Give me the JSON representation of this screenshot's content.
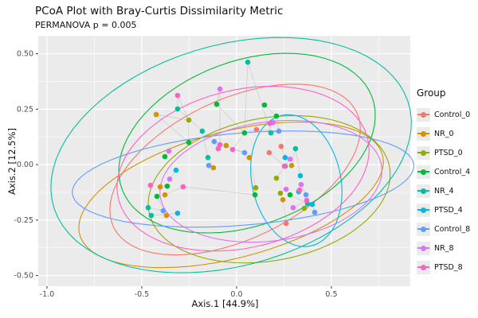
{
  "title": "PCoA Plot with Bray-Curtis Dissimilarity Metric",
  "subtitle": "PERMANOVA p = 0.005",
  "chart_data": {
    "type": "scatter",
    "xlabel": "Axis.1  [44.9%]",
    "ylabel": "Axis.2  [12.5%]",
    "legend_title": "Group",
    "xlim": [
      -1.046,
      0.916
    ],
    "ylim": [
      -0.548,
      0.581
    ],
    "x_major_ticks": [
      -1.0,
      -0.5,
      0.0,
      0.5
    ],
    "x_tick_labels": [
      "-1.0",
      "-0.5",
      "0.0",
      "0.5"
    ],
    "x_minor_ticks": [
      -0.75,
      -0.25,
      0.25,
      0.75
    ],
    "y_major_ticks": [
      0.5,
      0.25,
      0.0,
      -0.25,
      -0.5
    ],
    "y_tick_labels": [
      "0.50",
      "0.25",
      "0.00",
      "-0.25",
      "-0.50"
    ],
    "y_minor_ticks": [
      0.375,
      0.125,
      -0.125,
      -0.375
    ],
    "panel_bg": "#EBEBEB",
    "grid_color": "#FFFFFF",
    "web_color": "#999999",
    "series": [
      {
        "name": "Control_0",
        "color": "#F8766D",
        "points": [
          [
            0.105,
            0.158
          ],
          [
            0.235,
            0.082
          ],
          [
            0.261,
            -0.265
          ],
          [
            0.172,
            0.054
          ]
        ],
        "ellipse": {
          "cx": -0.008,
          "cy": -0.022,
          "a": 0.693,
          "b": 0.323,
          "rot": 20
        }
      },
      {
        "name": "NR_0",
        "color": "#D39200",
        "points": [
          [
            -0.424,
            0.226
          ],
          [
            -0.055,
            0.086
          ],
          [
            0.067,
            0.032
          ],
          [
            -0.122,
            -0.014
          ],
          [
            -0.403,
            -0.1
          ],
          [
            -0.378,
            -0.136
          ],
          [
            -0.37,
            -0.229
          ],
          [
            0.29,
            -0.004
          ],
          [
            0.244,
            -0.158
          ]
        ],
        "ellipse": {
          "cx": -0.029,
          "cy": -0.136,
          "a": 0.819,
          "b": 0.287,
          "rot": 12
        }
      },
      {
        "name": "PTSD_0",
        "color": "#93AA00",
        "points": [
          [
            -0.252,
            0.201
          ],
          [
            0.101,
            -0.104
          ],
          [
            0.21,
            -0.061
          ],
          [
            0.231,
            -0.129
          ],
          [
            0.357,
            -0.197
          ]
        ],
        "ellipse": {
          "cx": 0.172,
          "cy": -0.111,
          "a": 0.643,
          "b": 0.323,
          "rot": 8
        }
      },
      {
        "name": "Control_4",
        "color": "#00BA38",
        "points": [
          [
            -0.105,
            0.272
          ],
          [
            0.147,
            0.269
          ],
          [
            0.21,
            0.219
          ],
          [
            0.042,
            0.143
          ],
          [
            -0.252,
            0.1
          ],
          [
            -0.378,
            0.036
          ],
          [
            -0.366,
            -0.097
          ],
          [
            -0.42,
            -0.143
          ],
          [
            0.097,
            -0.136
          ],
          [
            0.282,
            -0.136
          ]
        ],
        "ellipse": {
          "cx": 0.055,
          "cy": 0.097,
          "a": 0.693,
          "b": 0.376,
          "rot": 15
        }
      },
      {
        "name": "NR_4",
        "color": "#00C19F",
        "points": [
          [
            0.059,
            0.462
          ],
          [
            -0.311,
            0.251
          ],
          [
            -0.181,
            0.151
          ],
          [
            0.181,
            0.143
          ],
          [
            0.311,
            0.072
          ],
          [
            0.256,
            -0.007
          ],
          [
            -0.151,
            0.032
          ],
          [
            -0.466,
            -0.194
          ],
          [
            -0.45,
            -0.229
          ],
          [
            0.374,
            -0.176
          ]
        ],
        "ellipse": {
          "cx": -0.029,
          "cy": 0.043,
          "a": 0.966,
          "b": 0.502,
          "rot": 12
        }
      },
      {
        "name": "PTSD_4",
        "color": "#00B9E3",
        "points": [
          [
            0.256,
            0.032
          ],
          [
            0.336,
            -0.05
          ],
          [
            0.328,
            -0.122
          ],
          [
            0.399,
            -0.179
          ],
          [
            -0.319,
            -0.025
          ],
          [
            -0.311,
            -0.219
          ]
        ],
        "ellipse": {
          "cx": 0.315,
          "cy": -0.072,
          "a": 0.231,
          "b": 0.305,
          "rot": 20
        }
      },
      {
        "name": "Control_8",
        "color": "#619CFF",
        "points": [
          [
            -0.118,
            0.104
          ],
          [
            0.223,
            0.151
          ],
          [
            0.042,
            0.054
          ],
          [
            -0.147,
            -0.004
          ],
          [
            0.366,
            -0.136
          ],
          [
            -0.387,
            -0.208
          ],
          [
            0.412,
            -0.215
          ]
        ],
        "ellipse": {
          "cx": 0.034,
          "cy": -0.065,
          "a": 0.903,
          "b": 0.208,
          "rot": 4
        }
      },
      {
        "name": "NR_8",
        "color": "#DB72FB",
        "points": [
          [
            -0.088,
            0.341
          ],
          [
            0.193,
            0.19
          ],
          [
            -0.357,
            0.061
          ],
          [
            -0.353,
            -0.065
          ],
          [
            0.282,
            0.025
          ],
          [
            0.261,
            -0.111
          ],
          [
            0.34,
            -0.09
          ],
          [
            0.298,
            -0.194
          ]
        ],
        "ellipse": {
          "cx": 0.181,
          "cy": -0.075,
          "a": 0.588,
          "b": 0.269,
          "rot": 6
        }
      },
      {
        "name": "PTSD_8",
        "color": "#FF61C3",
        "points": [
          [
            -0.311,
            0.312
          ],
          [
            0.176,
            0.186
          ],
          [
            -0.088,
            0.09
          ],
          [
            -0.097,
            0.072
          ],
          [
            -0.021,
            0.068
          ],
          [
            -0.454,
            -0.093
          ],
          [
            -0.282,
            -0.1
          ],
          [
            0.252,
            -0.007
          ],
          [
            0.332,
            -0.115
          ],
          [
            0.37,
            -0.161
          ]
        ],
        "ellipse": {
          "cx": 0.034,
          "cy": -0.018,
          "a": 0.672,
          "b": 0.358,
          "rot": 10
        }
      }
    ],
    "web_edges": [
      [
        28,
        31
      ],
      [
        28,
        21
      ],
      [
        59,
        13
      ],
      [
        59,
        29
      ],
      [
        51,
        61
      ],
      [
        51,
        18
      ],
      [
        60,
        31
      ],
      [
        4,
        22
      ],
      [
        4,
        13
      ],
      [
        29,
        30
      ],
      [
        18,
        21
      ],
      [
        19,
        20
      ],
      [
        20,
        45
      ],
      [
        0,
        45
      ],
      [
        0,
        21
      ],
      [
        1,
        38
      ],
      [
        5,
        46
      ],
      [
        5,
        44
      ],
      [
        6,
        14
      ],
      [
        7,
        34
      ],
      [
        7,
        47
      ],
      [
        8,
        24
      ],
      [
        9,
        65
      ],
      [
        10,
        25
      ],
      [
        13,
        22
      ],
      [
        14,
        26
      ],
      [
        15,
        33
      ],
      [
        16,
        56
      ],
      [
        17,
        37
      ],
      [
        23,
        53
      ],
      [
        30,
        34
      ],
      [
        32,
        39
      ],
      [
        35,
        49
      ],
      [
        36,
        43
      ],
      [
        40,
        67
      ],
      [
        41,
        50
      ],
      [
        42,
        54
      ],
      [
        44,
        62
      ],
      [
        46,
        63
      ],
      [
        48,
        57
      ],
      [
        52,
        60
      ],
      [
        55,
        66
      ],
      [
        58,
        68
      ],
      [
        3,
        66
      ],
      [
        2,
        12
      ],
      [
        11,
        32
      ],
      [
        63,
        21
      ],
      [
        45,
        31
      ],
      [
        27,
        37
      ],
      [
        26,
        65
      ]
    ]
  }
}
